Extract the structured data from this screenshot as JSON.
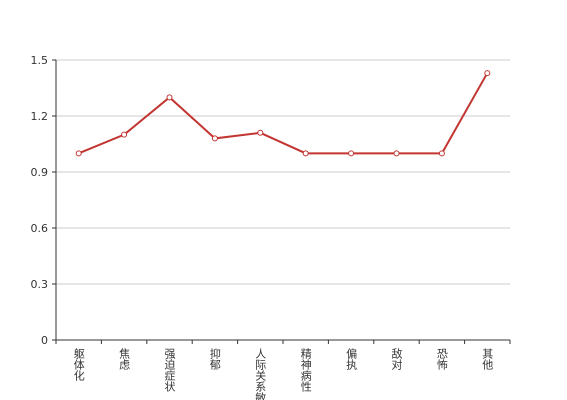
{
  "chart_data": {
    "type": "line",
    "categories": [
      "躯体化",
      "焦虑",
      "强迫症状",
      "抑郁",
      "人际关系敏感",
      "精神病性",
      "偏执",
      "敌对",
      "恐怖",
      "其他"
    ],
    "values": [
      1.0,
      1.1,
      1.3,
      1.08,
      1.11,
      1.0,
      1.0,
      1.0,
      1.0,
      1.43
    ],
    "color": "#c23531",
    "ylim": [
      0,
      1.5
    ],
    "yticks": [
      0,
      0.3,
      0.6,
      0.9,
      1.2,
      1.5
    ],
    "grid": true
  }
}
